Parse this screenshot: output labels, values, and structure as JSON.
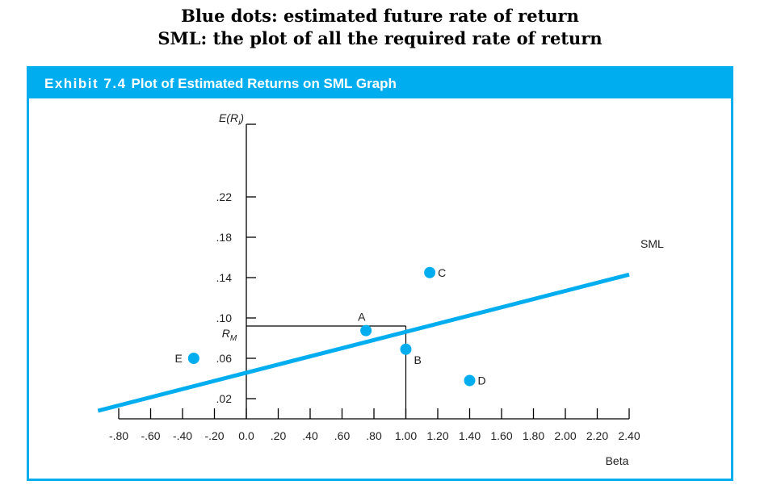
{
  "heading": {
    "line1": "Blue dots: estimated future rate of return",
    "line2": "SML: the plot of all the required rate of return"
  },
  "exhibit": {
    "number": "Exhibit 7.4",
    "title": "Plot of Estimated Returns on SML Graph"
  },
  "colors": {
    "accent": "#00aeef",
    "axis": "#000000"
  },
  "chart_data": {
    "type": "scatter",
    "ylabel": "E(R",
    "ylabel_sub": "i",
    "ylabel_close": ")",
    "xlabel": "Beta",
    "x_ticks": [
      "-.80",
      "-.60",
      "-.40",
      "-.20",
      "0.0",
      ".20",
      ".40",
      ".60",
      ".80",
      "1.00",
      "1.20",
      "1.40",
      "1.60",
      "1.80",
      "2.00",
      "2.20",
      "2.40"
    ],
    "x_tick_values": [
      -0.8,
      -0.6,
      -0.4,
      -0.2,
      0.0,
      0.2,
      0.4,
      0.6,
      0.8,
      1.0,
      1.2,
      1.4,
      1.6,
      1.8,
      2.0,
      2.2,
      2.4
    ],
    "y_ticks": [
      ".22",
      ".18",
      ".14",
      ".10",
      ".06",
      ".02"
    ],
    "y_tick_values": [
      0.22,
      0.18,
      0.14,
      0.1,
      0.06,
      0.02
    ],
    "xlim": [
      -0.8,
      2.4
    ],
    "ylim": [
      0.0,
      0.25
    ],
    "rm_label": "R",
    "rm_sub": "M",
    "rm_value": 0.092,
    "market_beta": 1.0,
    "sml": {
      "name": "SML",
      "x": [
        -0.93,
        2.4
      ],
      "y": [
        0.008,
        0.143
      ]
    },
    "points": [
      {
        "label": "A",
        "x": 0.75,
        "y": 0.0875
      },
      {
        "label": "B",
        "x": 1.0,
        "y": 0.069
      },
      {
        "label": "C",
        "x": 1.15,
        "y": 0.145
      },
      {
        "label": "D",
        "x": 1.4,
        "y": 0.038
      },
      {
        "label": "E",
        "x": -0.33,
        "y": 0.06
      }
    ]
  }
}
